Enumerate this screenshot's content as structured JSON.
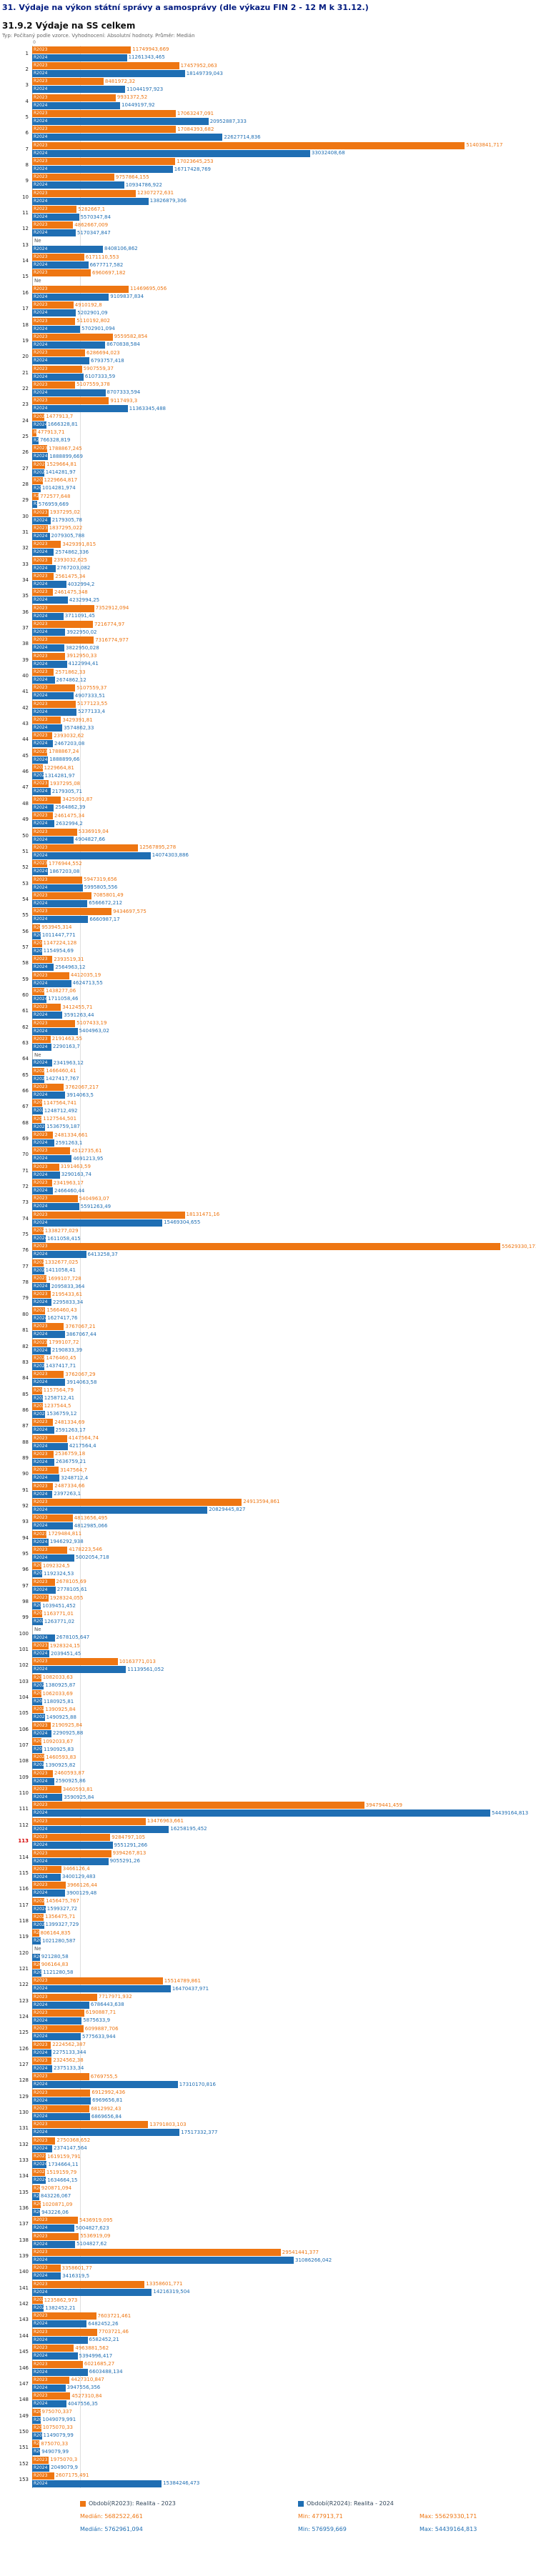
{
  "title": "31. Výdaje na výkon státní správy a samosprávy (dle výkazu FIN 2 - 12 M k 31.12.)",
  "subtitle": "31.9.2 Výdaje na SS celkem",
  "meta": "Typ: Počítaný podle vzorce. Vyhodnocení: Absolutní hodnoty. Průměr: Medián",
  "colors": {
    "r2023": "#ee7612",
    "r2024": "#1f6eb3",
    "title": "#001a7f",
    "highlight": "#d40000"
  },
  "chart_data": {
    "type": "bar",
    "orientation": "horizontal",
    "axis": {
      "zero_label": "0",
      "max": 55629330.171
    },
    "na_label": "Ne",
    "median_line_value": 5682522.461,
    "series": [
      {
        "name": "R2023",
        "legend": "Období(R2023): Realita - 2023",
        "color": "#ee7612",
        "stats": {
          "median": "Medián: 5682522,461",
          "min": "Min: 477913,71",
          "max": "Max: 55629330,171"
        }
      },
      {
        "name": "R2024",
        "legend": "Období(R2024): Realita - 2024",
        "color": "#1f6eb3",
        "stats": {
          "median": "Medián: 5762961,094",
          "min": "Min: 576959,669",
          "max": "Max: 54439164,813"
        }
      }
    ],
    "rows": [
      {
        "n": "1",
        "r2023": "11749943,669",
        "r2024": "11261343,465"
      },
      {
        "n": "2",
        "r2023": "17457952,063",
        "r2024": "18149739,043"
      },
      {
        "n": "3",
        "r2023": "8481972,32",
        "r2024": "11044197,923"
      },
      {
        "n": "4",
        "r2023": "9931372,52",
        "r2024": "10449197,92"
      },
      {
        "n": "5",
        "r2023": "17063247,091",
        "r2024": "20952887,333"
      },
      {
        "n": "6",
        "r2023": "17084393,682",
        "r2024": "22627714,836"
      },
      {
        "n": "7",
        "r2023": "51403841,717",
        "r2024": "33032408,68"
      },
      {
        "n": "8",
        "r2023": "17023645,253",
        "r2024": "16717428,769"
      },
      {
        "n": "9",
        "r2023": "9757864,155",
        "r2024": "10934786,922"
      },
      {
        "n": "10",
        "r2023": "12307272,631",
        "r2024": "13826879,306"
      },
      {
        "n": "11",
        "r2023": "5282667,1",
        "r2024": "5570347,84"
      },
      {
        "n": "12",
        "r2023": "4862667,009",
        "r2024": "5170347,847"
      },
      {
        "n": "13",
        "r2023": "Ne",
        "r2024": "8408106,862"
      },
      {
        "n": "14",
        "r2023": "6171110,553",
        "r2024": "6677717,582"
      },
      {
        "n": "15",
        "r2023": "6960697,182",
        "r2024": "Ne"
      },
      {
        "n": "16",
        "r2023": "11469695,056",
        "r2024": "9109837,834"
      },
      {
        "n": "17",
        "r2023": "4910192,8",
        "r2024": "5202901,09"
      },
      {
        "n": "18",
        "r2023": "5110192,802",
        "r2024": "5702901,094"
      },
      {
        "n": "19",
        "r2023": "9559582,854",
        "r2024": "8670838,584"
      },
      {
        "n": "20",
        "r2023": "6286694,023",
        "r2024": "6793757,418"
      },
      {
        "n": "21",
        "r2023": "5907559,37",
        "r2024": "6107333,59"
      },
      {
        "n": "22",
        "r2023": "5107559,378",
        "r2024": "8707333,594"
      },
      {
        "n": "23",
        "r2023": "9117493,3",
        "r2024": "11363345,488"
      },
      {
        "n": "24",
        "r2023": "1477913,7",
        "r2024": "1666328,81"
      },
      {
        "n": "25",
        "r2023": "477913,71",
        "r2024": "766328,819"
      },
      {
        "n": "26",
        "r2023": "1788867,245",
        "r2024": "1888899,669"
      },
      {
        "n": "27",
        "r2023": "1529664,81",
        "r2024": "1414281,97"
      },
      {
        "n": "28",
        "r2023": "1229664,817",
        "r2024": "1014281,974"
      },
      {
        "n": "29",
        "r2023": "772577,648",
        "r2024": "576959,669"
      },
      {
        "n": "30",
        "r2023": "1937295,02",
        "r2024": "2179305,78"
      },
      {
        "n": "31",
        "r2023": "1837295,022",
        "r2024": "2079305,788"
      },
      {
        "n": "32",
        "r2023": "3429391,815",
        "r2024": "2574862,336"
      },
      {
        "n": "33",
        "r2023": "2393032,625",
        "r2024": "2767203,082"
      },
      {
        "n": "34",
        "r2023": "2561475,34",
        "r2024": "4032994,2"
      },
      {
        "n": "35",
        "r2023": "2461475,348",
        "r2024": "4232994,25"
      },
      {
        "n": "36",
        "r2023": "7352912,094",
        "r2024": "3711091,45"
      },
      {
        "n": "37",
        "r2023": "7216774,97",
        "r2024": "3922950,02"
      },
      {
        "n": "38",
        "r2023": "7316774,977",
        "r2024": "3822950,028"
      },
      {
        "n": "39",
        "r2023": "3912950,33",
        "r2024": "4122994,41"
      },
      {
        "n": "40",
        "r2023": "2571862,33",
        "r2024": "2674862,12"
      },
      {
        "n": "41",
        "r2023": "5107559,37",
        "r2024": "4907333,51"
      },
      {
        "n": "42",
        "r2023": "5177123,55",
        "r2024": "5277133,4"
      },
      {
        "n": "43",
        "r2023": "3429391,81",
        "r2024": "3574862,33"
      },
      {
        "n": "44",
        "r2023": "2393032,62",
        "r2024": "2467203,08"
      },
      {
        "n": "45",
        "r2023": "1788867,24",
        "r2024": "1888899,66"
      },
      {
        "n": "46",
        "r2023": "1229664,81",
        "r2024": "1314281,97"
      },
      {
        "n": "47",
        "r2023": "1937295,08",
        "r2024": "2179305,71"
      },
      {
        "n": "48",
        "r2023": "3425091,87",
        "r2024": "2564862,39"
      },
      {
        "n": "49",
        "r2023": "2461475,34",
        "r2024": "2632994,2"
      },
      {
        "n": "50",
        "r2023": "5336919,04",
        "r2024": "4904827,66"
      },
      {
        "n": "51",
        "r2023": "12567895,278",
        "r2024": "14074303,886"
      },
      {
        "n": "52",
        "r2023": "1776944,552",
        "r2024": "1867203,08"
      },
      {
        "n": "53",
        "r2023": "5947319,656",
        "r2024": "5995805,556"
      },
      {
        "n": "54",
        "r2023": "7085801,49",
        "r2024": "6566672,212"
      },
      {
        "n": "55",
        "r2023": "9434697,575",
        "r2024": "6660987,17"
      },
      {
        "n": "56",
        "r2023": "953945,314",
        "r2024": "1011447,771"
      },
      {
        "n": "57",
        "r2023": "1147224,128",
        "r2024": "1154954,69"
      },
      {
        "n": "58",
        "r2023": "2393519,31",
        "r2024": "2564963,12"
      },
      {
        "n": "59",
        "r2023": "4412035,19",
        "r2024": "4624713,55"
      },
      {
        "n": "60",
        "r2023": "1438277,06",
        "r2024": "1711058,46"
      },
      {
        "n": "61",
        "r2023": "3412455,71",
        "r2024": "3591263,44"
      },
      {
        "n": "62",
        "r2023": "5107433,19",
        "r2024": "5404963,02"
      },
      {
        "n": "63",
        "r2023": "2191463,55",
        "r2024": "2290163,7"
      },
      {
        "n": "64",
        "r2023": "Ne",
        "r2024": "2341963,12"
      },
      {
        "n": "65",
        "r2023": "1466460,41",
        "r2024": "1427417,767"
      },
      {
        "n": "66",
        "r2023": "3762067,217",
        "r2024": "3914063,5"
      },
      {
        "n": "67",
        "r2023": "1147564,741",
        "r2024": "1248712,492"
      },
      {
        "n": "68",
        "r2023": "1127544,501",
        "r2024": "1536759,187"
      },
      {
        "n": "69",
        "r2023": "2481334,661",
        "r2024": "2591263,1"
      },
      {
        "n": "70",
        "r2023": "4512735,61",
        "r2024": "4691213,95"
      },
      {
        "n": "71",
        "r2023": "3191463,59",
        "r2024": "3290163,74"
      },
      {
        "n": "72",
        "r2023": "2341963,17",
        "r2024": "2466460,44"
      },
      {
        "n": "73",
        "r2023": "5404963,07",
        "r2024": "5591263,49"
      },
      {
        "n": "74",
        "r2023": "18131471,16",
        "r2024": "15469304,655"
      },
      {
        "n": "75",
        "r2023": "1338277,029",
        "r2024": "1611058,415"
      },
      {
        "n": "76",
        "r2023": "55629330,171",
        "r2024": "6413258,37"
      },
      {
        "n": "77",
        "r2023": "1332677,025",
        "r2024": "1411058,41"
      },
      {
        "n": "78",
        "r2023": "1699107,728",
        "r2024": "2095833,364"
      },
      {
        "n": "79",
        "r2023": "2195433,61",
        "r2024": "2295833,34"
      },
      {
        "n": "80",
        "r2023": "1566460,43",
        "r2024": "1627417,76"
      },
      {
        "n": "81",
        "r2023": "3767067,21",
        "r2024": "3867067,44"
      },
      {
        "n": "82",
        "r2023": "1799107,72",
        "r2024": "2190833,39"
      },
      {
        "n": "83",
        "r2023": "1476460,45",
        "r2024": "1437417,71"
      },
      {
        "n": "84",
        "r2023": "3762067,29",
        "r2024": "3914063,58"
      },
      {
        "n": "85",
        "r2023": "1157564,79",
        "r2024": "1258712,41"
      },
      {
        "n": "86",
        "r2023": "1237544,5",
        "r2024": "1536759,12"
      },
      {
        "n": "87",
        "r2023": "2481334,69",
        "r2024": "2591263,17"
      },
      {
        "n": "88",
        "r2023": "4147564,74",
        "r2024": "4217564,4"
      },
      {
        "n": "89",
        "r2023": "2536759,18",
        "r2024": "2636759,21"
      },
      {
        "n": "90",
        "r2023": "3147564,7",
        "r2024": "3248712,4"
      },
      {
        "n": "91",
        "r2023": "2487334,66",
        "r2024": "2397263,1"
      },
      {
        "n": "92",
        "r2023": "24913594,861",
        "r2024": "20829445,827"
      },
      {
        "n": "93",
        "r2023": "4813656,495",
        "r2024": "4812985,066"
      },
      {
        "n": "94",
        "r2023": "1729484,811",
        "r2024": "1946292,938"
      },
      {
        "n": "95",
        "r2023": "4178223,546",
        "r2024": "5002054,718"
      },
      {
        "n": "96",
        "r2023": "1092324,5",
        "r2024": "1192324,53"
      },
      {
        "n": "97",
        "r2023": "2678105,69",
        "r2024": "2778105,61"
      },
      {
        "n": "98",
        "r2023": "1928324,055",
        "r2024": "1039451,452"
      },
      {
        "n": "99",
        "r2023": "1163771,01",
        "r2024": "1263771,02"
      },
      {
        "n": "100",
        "r2023": "Ne",
        "r2024": "2678105,647"
      },
      {
        "n": "101",
        "r2023": "1928324,15",
        "r2024": "2039451,45"
      },
      {
        "n": "102",
        "r2023": "10163771,013",
        "r2024": "11139561,052"
      },
      {
        "n": "103",
        "r2023": "1082033,63",
        "r2024": "1380925,87"
      },
      {
        "n": "104",
        "r2023": "1062033,69",
        "r2024": "1180925,81"
      },
      {
        "n": "105",
        "r2023": "1390925,84",
        "r2024": "1490925,88"
      },
      {
        "n": "106",
        "r2023": "2190925,84",
        "r2024": "2290925,88"
      },
      {
        "n": "107",
        "r2023": "1092033,67",
        "r2024": "1190925,83"
      },
      {
        "n": "108",
        "r2023": "1460593,83",
        "r2024": "1390925,82"
      },
      {
        "n": "109",
        "r2023": "2460593,87",
        "r2024": "2590925,86"
      },
      {
        "n": "110",
        "r2023": "3460593,81",
        "r2024": "3590925,84"
      },
      {
        "n": "111",
        "r2023": "39479441,459",
        "r2024": "54439164,813"
      },
      {
        "n": "112",
        "r2023": "13476963,661",
        "r2024": "16258195,452"
      },
      {
        "n": "113",
        "r2023": "9284797,105",
        "r2024": "9551291,266",
        "highlight": true
      },
      {
        "n": "114",
        "r2023": "9394267,813",
        "r2024": "9055291,26"
      },
      {
        "n": "115",
        "r2023": "3466126,4",
        "r2024": "3400129,483"
      },
      {
        "n": "116",
        "r2023": "3966126,44",
        "r2024": "3900129,48"
      },
      {
        "n": "117",
        "r2023": "1456475,767",
        "r2024": "1599327,72"
      },
      {
        "n": "118",
        "r2023": "1356475,71",
        "r2024": "1399327,729"
      },
      {
        "n": "119",
        "r2023": "806164,835",
        "r2024": "1021280,587"
      },
      {
        "n": "120",
        "r2023": "Ne",
        "r2024": "921280,58"
      },
      {
        "n": "121",
        "r2023": "906164,83",
        "r2024": "1121280,58"
      },
      {
        "n": "122",
        "r2023": "15514789,861",
        "r2024": "16470437,971"
      },
      {
        "n": "123",
        "r2023": "7717971,932",
        "r2024": "6786443,638"
      },
      {
        "n": "124",
        "r2023": "6190887,71",
        "r2024": "5875633,9"
      },
      {
        "n": "125",
        "r2023": "6099887,706",
        "r2024": "5775633,944"
      },
      {
        "n": "126",
        "r2023": "2224562,387",
        "r2024": "2275133,344"
      },
      {
        "n": "127",
        "r2023": "2324562,38",
        "r2024": "2375133,34"
      },
      {
        "n": "128",
        "r2023": "6769755,5",
        "r2024": "17310170,816"
      },
      {
        "n": "129",
        "r2023": "6912992,436",
        "r2024": "6969656,81"
      },
      {
        "n": "130",
        "r2023": "6812992,43",
        "r2024": "6869656,84"
      },
      {
        "n": "131",
        "r2023": "13791803,103",
        "r2024": "17517332,377"
      },
      {
        "n": "132",
        "r2023": "2750368,652",
        "r2024": "2374147,564"
      },
      {
        "n": "133",
        "r2023": "1619159,791",
        "r2024": "1734664,11"
      },
      {
        "n": "134",
        "r2023": "1519159,79",
        "r2024": "1634664,15"
      },
      {
        "n": "135",
        "r2023": "920871,094",
        "r2024": "843226,067"
      },
      {
        "n": "136",
        "r2023": "1020871,09",
        "r2024": "943226,06"
      },
      {
        "n": "137",
        "r2023": "5436919,095",
        "r2024": "5004827,623"
      },
      {
        "n": "138",
        "r2023": "5536919,09",
        "r2024": "5104827,62"
      },
      {
        "n": "139",
        "r2023": "29541441,377",
        "r2024": "31086266,042"
      },
      {
        "n": "140",
        "r2023": "3358601,77",
        "r2024": "3416319,5"
      },
      {
        "n": "141",
        "r2023": "13358601,771",
        "r2024": "14216319,504"
      },
      {
        "n": "142",
        "r2023": "1235862,973",
        "r2024": "1382452,21"
      },
      {
        "n": "143",
        "r2023": "7603721,461",
        "r2024": "6482452,26"
      },
      {
        "n": "144",
        "r2023": "7703721,46",
        "r2024": "6582452,21"
      },
      {
        "n": "145",
        "r2023": "4963881,562",
        "r2024": "5394996,417"
      },
      {
        "n": "146",
        "r2023": "6021685,27",
        "r2024": "6603488,134"
      },
      {
        "n": "147",
        "r2023": "4427310,847",
        "r2024": "3947556,356"
      },
      {
        "n": "148",
        "r2023": "4527310,84",
        "r2024": "4047556,35"
      },
      {
        "n": "149",
        "r2023": "975070,337",
        "r2024": "1049079,991"
      },
      {
        "n": "150",
        "r2023": "1075070,33",
        "r2024": "1149079,99"
      },
      {
        "n": "151",
        "r2023": "875070,33",
        "r2024": "949079,99"
      },
      {
        "n": "152",
        "r2023": "1975070,3",
        "r2024": "2049079,9"
      },
      {
        "n": "153",
        "r2023": "2607175,491",
        "r2024": "15384246,473"
      }
    ]
  },
  "footer": {
    "legend": [
      "Období(R2023): Realita - 2023",
      "Období(R2024): Realita - 2024"
    ]
  }
}
